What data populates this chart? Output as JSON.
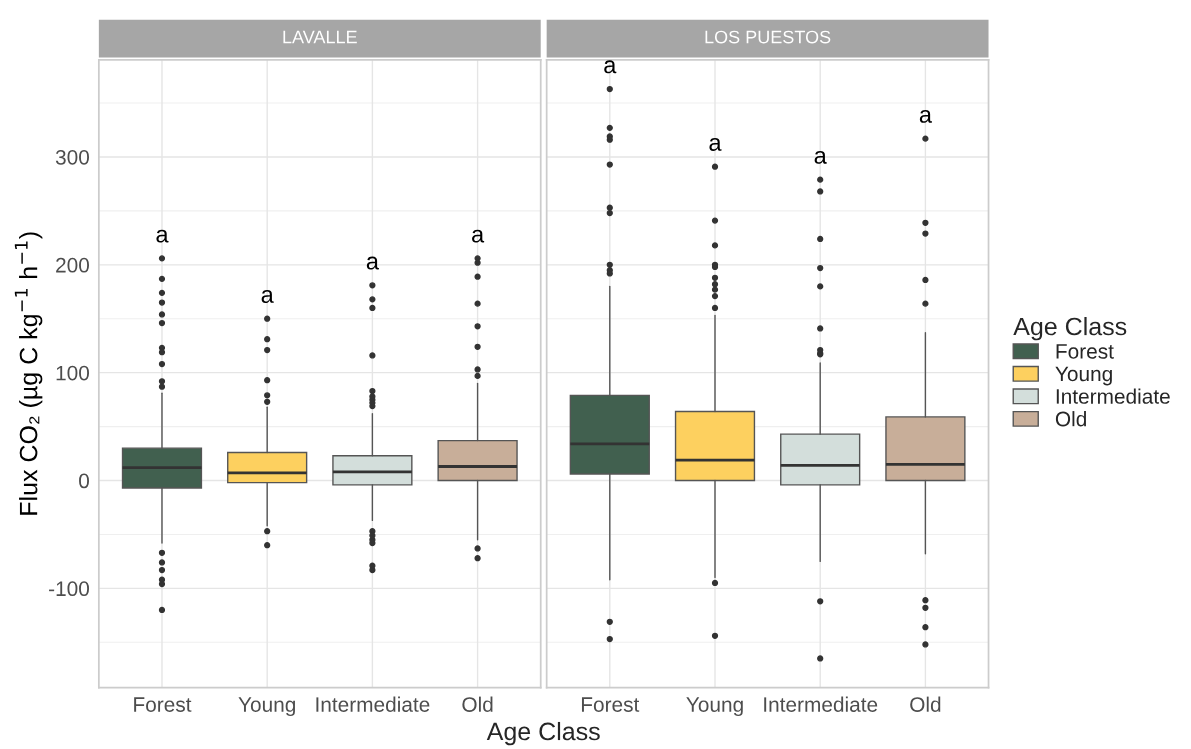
{
  "chart_data": [
    {
      "type": "box",
      "title": "LAVALLE",
      "ylabel": "Flux CO₂ (µg C kg$^{−1}$ h$^{−1}$)",
      "xlabel": "Age Class",
      "categories": [
        "Forest",
        "Young",
        "Intermediate",
        "Old"
      ],
      "series": [
        {
          "name": "Forest",
          "color": "#41604f",
          "boxes": [
            {
              "low": -58,
              "q1": -7,
              "median": 12,
              "q3": 30,
              "high": 81,
              "outliers": [
                206,
                187,
                174,
                165,
                154,
                146,
                123,
                119,
                108,
                92,
                87,
                -67,
                -76,
                -83,
                -92,
                -96,
                -120
              ]
            },
            null,
            null,
            null
          ]
        },
        {
          "name": "Young",
          "color": "#fdd05f",
          "boxes": [
            null,
            {
              "low": -42,
              "q1": -2,
              "median": 7,
              "q3": 26,
              "high": 68,
              "outliers": [
                150,
                131,
                121,
                93,
                79,
                73,
                -47,
                -60
              ]
            },
            null,
            null
          ]
        },
        {
          "name": "Intermediate",
          "color": "#d3dedb",
          "boxes": [
            null,
            null,
            {
              "low": -37,
              "q1": -4,
              "median": 8,
              "q3": 23,
              "high": 62,
              "outliers": [
                181,
                168,
                160,
                116,
                83,
                78,
                75,
                72,
                69,
                -47,
                -51,
                -55,
                -58,
                -79,
                -83
              ]
            },
            null
          ]
        },
        {
          "name": "Old",
          "color": "#c8ae99",
          "boxes": [
            null,
            null,
            null,
            {
              "low": -55,
              "q1": 0,
              "median": 13,
              "q3": 37,
              "high": 90,
              "outliers": [
                206,
                202,
                189,
                164,
                143,
                124,
                103,
                97,
                -63,
                -72
              ]
            }
          ]
        }
      ],
      "annotations": [
        "a",
        "a",
        "a",
        "a"
      ],
      "ylim": [
        -192,
        390
      ],
      "yticks": [
        -100,
        0,
        100,
        200,
        300
      ],
      "grid": true,
      "legend": "right"
    },
    {
      "type": "box",
      "title": "LOS PUESTOS",
      "legend_title": "Age Class",
      "categories": [
        "Forest",
        "Young",
        "Intermediate",
        "Old"
      ],
      "series": [
        {
          "name": "Forest",
          "color": "#41604f",
          "boxes": [
            {
              "low": -92,
              "q1": 6,
              "median": 34,
              "q3": 79,
              "high": 180,
              "outliers": [
                363,
                327,
                319,
                316,
                293,
                253,
                248,
                200,
                195,
                192,
                -131,
                -147
              ]
            },
            null,
            null,
            null
          ]
        },
        {
          "name": "Young",
          "color": "#fdd05f",
          "boxes": [
            null,
            {
              "low": -90,
              "q1": 0,
              "median": 19,
              "q3": 64,
              "high": 153,
              "outliers": [
                291,
                241,
                218,
                200,
                198,
                188,
                182,
                177,
                171,
                160,
                -95,
                -144
              ]
            },
            null,
            null
          ]
        },
        {
          "name": "Intermediate",
          "color": "#d3dedb",
          "boxes": [
            null,
            null,
            {
              "low": -75,
              "q1": -4,
              "median": 14,
              "q3": 43,
              "high": 109,
              "outliers": [
                279,
                268,
                224,
                197,
                180,
                141,
                121,
                118,
                117,
                -112,
                -165
              ]
            },
            null
          ]
        },
        {
          "name": "Old",
          "color": "#c8ae99",
          "boxes": [
            null,
            null,
            null,
            {
              "low": -68,
              "q1": 0,
              "median": 15,
              "q3": 59,
              "high": 137,
              "outliers": [
                317,
                239,
                229,
                186,
                164,
                -111,
                -118,
                -136,
                -152
              ]
            }
          ]
        }
      ],
      "annotations": [
        "a",
        "a",
        "a",
        "a"
      ],
      "ylim": [
        -192,
        390
      ],
      "yticks": [
        -100,
        0,
        100,
        200,
        300
      ],
      "grid": true,
      "legend": "right",
      "tick_labels": "x"
    }
  ]
}
